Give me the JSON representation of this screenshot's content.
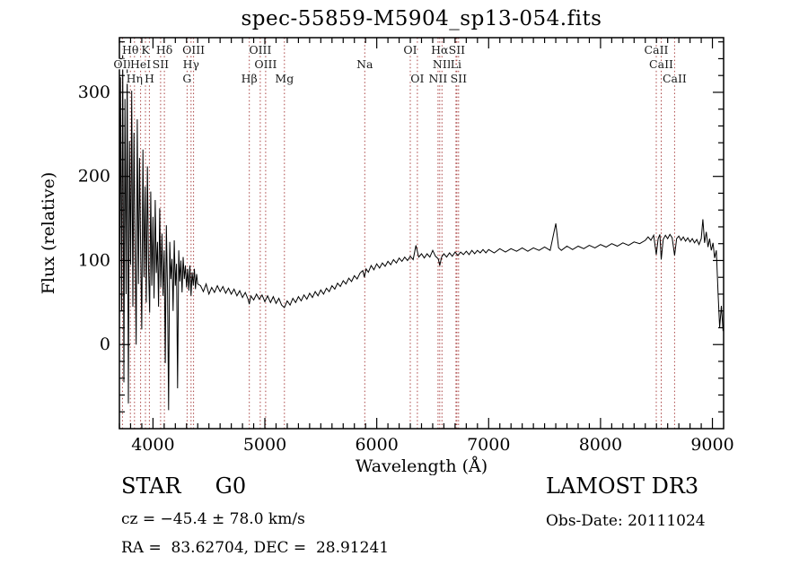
{
  "title": "spec-55859-M5904_sp13-054.fits",
  "annotations": {
    "class_label": "STAR     G0",
    "survey": "LAMOST DR3",
    "cz": "cz = −45.4 ± 78.0 km/s",
    "obs_date": "Obs-Date: 20111024",
    "radec": "RA =  83.62704, DEC =  28.91241"
  },
  "chart_data": {
    "type": "line",
    "title": "spec-55859-M5904_sp13-054.fits",
    "xlabel": "Wavelength (Å)",
    "ylabel": "Flux (relative)",
    "xlim": [
      3700,
      9100
    ],
    "ylim": [
      -100,
      365
    ],
    "x_ticks": [
      4000,
      5000,
      6000,
      7000,
      8000,
      9000
    ],
    "y_ticks": [
      0,
      100,
      200,
      300
    ],
    "x_minor_step": 100,
    "y_minor_step": 20,
    "grid": false,
    "line_color": "#000000",
    "marker_color": "#aa4444",
    "marker_label_color": "#1a1a1a",
    "spectral_lines": [
      {
        "wl": 3727,
        "label": "OII",
        "row": 2
      },
      {
        "wl": 3798,
        "label": "Hθ",
        "row": 1
      },
      {
        "wl": 3835,
        "label": "Hη",
        "row": 3
      },
      {
        "wl": 3889,
        "label": "HeI",
        "row": 2
      },
      {
        "wl": 3933,
        "label": "K",
        "row": 1
      },
      {
        "wl": 3968,
        "label": "H",
        "row": 3
      },
      {
        "wl": 4068,
        "label": "SII",
        "row": 2
      },
      {
        "wl": 4102,
        "label": "Hδ",
        "row": 1
      },
      {
        "wl": 4305,
        "label": "G",
        "row": 3
      },
      {
        "wl": 4340,
        "label": "Hγ",
        "row": 2
      },
      {
        "wl": 4363,
        "label": "OIII",
        "row": 1
      },
      {
        "wl": 4861,
        "label": "Hβ",
        "row": 3
      },
      {
        "wl": 4959,
        "label": "OIII",
        "row": 1
      },
      {
        "wl": 5007,
        "label": "OIII",
        "row": 2
      },
      {
        "wl": 5175,
        "label": "Mg",
        "row": 3
      },
      {
        "wl": 5893,
        "label": "Na",
        "row": 2
      },
      {
        "wl": 6300,
        "label": "OI",
        "row": 1
      },
      {
        "wl": 6363,
        "label": "OI",
        "row": 3
      },
      {
        "wl": 6548,
        "label": "NII",
        "row": 3
      },
      {
        "wl": 6563,
        "label": "Hα",
        "row": 1
      },
      {
        "wl": 6583,
        "label": "NII",
        "row": 2
      },
      {
        "wl": 6708,
        "label": "Li",
        "row": 2
      },
      {
        "wl": 6716,
        "label": "SII",
        "row": 1
      },
      {
        "wl": 6731,
        "label": "SII",
        "row": 3
      },
      {
        "wl": 8498,
        "label": "CaII",
        "row": 1
      },
      {
        "wl": 8542,
        "label": "CaII",
        "row": 2
      },
      {
        "wl": 8662,
        "label": "CaII",
        "row": 3
      }
    ],
    "series": [
      {
        "name": "spectrum",
        "points": [
          [
            3700,
            8
          ],
          [
            3710,
            318
          ],
          [
            3720,
            40
          ],
          [
            3730,
            345
          ],
          [
            3740,
            -45
          ],
          [
            3750,
            292
          ],
          [
            3760,
            60
          ],
          [
            3770,
            330
          ],
          [
            3780,
            -70
          ],
          [
            3790,
            242
          ],
          [
            3800,
            95
          ],
          [
            3810,
            302
          ],
          [
            3820,
            45
          ],
          [
            3830,
            252
          ],
          [
            3840,
            120
          ],
          [
            3850,
            0
          ],
          [
            3860,
            268
          ],
          [
            3870,
            72
          ],
          [
            3880,
            222
          ],
          [
            3890,
            110
          ],
          [
            3900,
            18
          ],
          [
            3910,
            232
          ],
          [
            3920,
            80
          ],
          [
            3930,
            188
          ],
          [
            3940,
            50
          ],
          [
            3950,
            212
          ],
          [
            3960,
            95
          ],
          [
            3970,
            38
          ],
          [
            3980,
            182
          ],
          [
            3990,
            70
          ],
          [
            4000,
            152
          ],
          [
            4010,
            55
          ],
          [
            4020,
            172
          ],
          [
            4030,
            85
          ],
          [
            4040,
            122
          ],
          [
            4050,
            45
          ],
          [
            4060,
            162
          ],
          [
            4070,
            68
          ],
          [
            4080,
            132
          ],
          [
            4090,
            58
          ],
          [
            4100,
            112
          ],
          [
            4110,
            -22
          ],
          [
            4120,
            142
          ],
          [
            4130,
            65
          ],
          [
            4140,
            -78
          ],
          [
            4150,
            122
          ],
          [
            4160,
            78
          ],
          [
            4170,
            102
          ],
          [
            4180,
            40
          ],
          [
            4190,
            124
          ],
          [
            4200,
            70
          ],
          [
            4210,
            96
          ],
          [
            4220,
            -52
          ],
          [
            4230,
            112
          ],
          [
            4240,
            75
          ],
          [
            4250,
            100
          ],
          [
            4260,
            62
          ],
          [
            4270,
            104
          ],
          [
            4280,
            78
          ],
          [
            4290,
            94
          ],
          [
            4300,
            68
          ],
          [
            4310,
            90
          ],
          [
            4320,
            64
          ],
          [
            4330,
            94
          ],
          [
            4340,
            58
          ],
          [
            4350,
            86
          ],
          [
            4360,
            70
          ],
          [
            4370,
            90
          ],
          [
            4380,
            66
          ],
          [
            4390,
            84
          ],
          [
            4400,
            72
          ],
          [
            4425,
            70
          ],
          [
            4450,
            63
          ],
          [
            4475,
            72
          ],
          [
            4500,
            60
          ],
          [
            4525,
            68
          ],
          [
            4550,
            62
          ],
          [
            4575,
            70
          ],
          [
            4600,
            63
          ],
          [
            4625,
            69
          ],
          [
            4650,
            61
          ],
          [
            4675,
            67
          ],
          [
            4700,
            60
          ],
          [
            4725,
            66
          ],
          [
            4750,
            58
          ],
          [
            4775,
            64
          ],
          [
            4800,
            56
          ],
          [
            4825,
            62
          ],
          [
            4850,
            54
          ],
          [
            4861,
            48
          ],
          [
            4875,
            58
          ],
          [
            4900,
            53
          ],
          [
            4925,
            60
          ],
          [
            4950,
            54
          ],
          [
            4975,
            59
          ],
          [
            5000,
            51
          ],
          [
            5025,
            58
          ],
          [
            5050,
            50
          ],
          [
            5075,
            57
          ],
          [
            5100,
            49
          ],
          [
            5125,
            55
          ],
          [
            5150,
            47
          ],
          [
            5175,
            44
          ],
          [
            5200,
            52
          ],
          [
            5225,
            47
          ],
          [
            5250,
            55
          ],
          [
            5275,
            50
          ],
          [
            5300,
            57
          ],
          [
            5325,
            52
          ],
          [
            5350,
            59
          ],
          [
            5375,
            54
          ],
          [
            5400,
            61
          ],
          [
            5425,
            56
          ],
          [
            5450,
            63
          ],
          [
            5475,
            58
          ],
          [
            5500,
            65
          ],
          [
            5525,
            60
          ],
          [
            5550,
            67
          ],
          [
            5575,
            63
          ],
          [
            5600,
            70
          ],
          [
            5625,
            66
          ],
          [
            5650,
            73
          ],
          [
            5675,
            69
          ],
          [
            5700,
            76
          ],
          [
            5725,
            72
          ],
          [
            5750,
            79
          ],
          [
            5775,
            75
          ],
          [
            5800,
            82
          ],
          [
            5825,
            78
          ],
          [
            5850,
            85
          ],
          [
            5875,
            88
          ],
          [
            5890,
            80
          ],
          [
            5905,
            90
          ],
          [
            5925,
            86
          ],
          [
            5950,
            94
          ],
          [
            5975,
            89
          ],
          [
            6000,
            96
          ],
          [
            6025,
            91
          ],
          [
            6050,
            97
          ],
          [
            6075,
            93
          ],
          [
            6100,
            99
          ],
          [
            6125,
            95
          ],
          [
            6150,
            101
          ],
          [
            6175,
            97
          ],
          [
            6200,
            103
          ],
          [
            6225,
            99
          ],
          [
            6250,
            104
          ],
          [
            6275,
            100
          ],
          [
            6300,
            105
          ],
          [
            6325,
            101
          ],
          [
            6350,
            118
          ],
          [
            6375,
            104
          ],
          [
            6400,
            108
          ],
          [
            6425,
            103
          ],
          [
            6450,
            108
          ],
          [
            6475,
            104
          ],
          [
            6500,
            112
          ],
          [
            6525,
            105
          ],
          [
            6550,
            102
          ],
          [
            6563,
            94
          ],
          [
            6580,
            104
          ],
          [
            6600,
            108
          ],
          [
            6625,
            104
          ],
          [
            6650,
            109
          ],
          [
            6675,
            105
          ],
          [
            6700,
            110
          ],
          [
            6725,
            106
          ],
          [
            6750,
            110
          ],
          [
            6775,
            107
          ],
          [
            6800,
            111
          ],
          [
            6825,
            107
          ],
          [
            6850,
            112
          ],
          [
            6875,
            108
          ],
          [
            6900,
            112
          ],
          [
            6925,
            109
          ],
          [
            6950,
            113
          ],
          [
            6975,
            109
          ],
          [
            7000,
            113
          ],
          [
            7050,
            109
          ],
          [
            7100,
            114
          ],
          [
            7150,
            110
          ],
          [
            7200,
            114
          ],
          [
            7250,
            111
          ],
          [
            7300,
            115
          ],
          [
            7350,
            111
          ],
          [
            7400,
            115
          ],
          [
            7450,
            112
          ],
          [
            7500,
            116
          ],
          [
            7550,
            112
          ],
          [
            7600,
            144
          ],
          [
            7625,
            115
          ],
          [
            7650,
            112
          ],
          [
            7700,
            117
          ],
          [
            7750,
            113
          ],
          [
            7800,
            117
          ],
          [
            7850,
            114
          ],
          [
            7900,
            118
          ],
          [
            7950,
            115
          ],
          [
            8000,
            119
          ],
          [
            8050,
            116
          ],
          [
            8100,
            120
          ],
          [
            8150,
            117
          ],
          [
            8200,
            121
          ],
          [
            8250,
            118
          ],
          [
            8300,
            122
          ],
          [
            8350,
            120
          ],
          [
            8400,
            124
          ],
          [
            8425,
            128
          ],
          [
            8450,
            124
          ],
          [
            8475,
            130
          ],
          [
            8498,
            107
          ],
          [
            8515,
            126
          ],
          [
            8530,
            131
          ],
          [
            8542,
            101
          ],
          [
            8560,
            125
          ],
          [
            8580,
            130
          ],
          [
            8600,
            126
          ],
          [
            8620,
            131
          ],
          [
            8640,
            127
          ],
          [
            8662,
            106
          ],
          [
            8680,
            126
          ],
          [
            8700,
            129
          ],
          [
            8720,
            124
          ],
          [
            8740,
            128
          ],
          [
            8760,
            123
          ],
          [
            8780,
            127
          ],
          [
            8800,
            122
          ],
          [
            8820,
            126
          ],
          [
            8840,
            121
          ],
          [
            8860,
            125
          ],
          [
            8880,
            119
          ],
          [
            8900,
            126
          ],
          [
            8915,
            149
          ],
          [
            8930,
            121
          ],
          [
            8945,
            134
          ],
          [
            8960,
            116
          ],
          [
            8975,
            126
          ],
          [
            8990,
            112
          ],
          [
            9005,
            121
          ],
          [
            9020,
            103
          ],
          [
            9035,
            112
          ],
          [
            9050,
            62
          ],
          [
            9065,
            20
          ],
          [
            9080,
            46
          ],
          [
            9095,
            16
          ]
        ]
      }
    ]
  }
}
